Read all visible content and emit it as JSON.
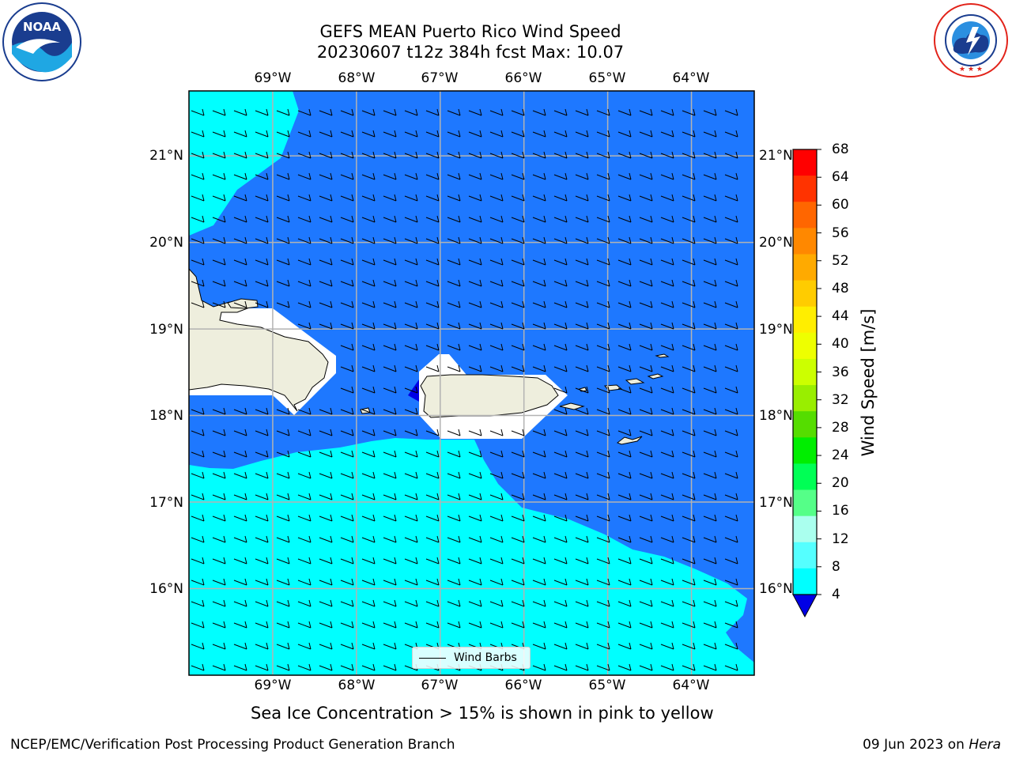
{
  "header": {
    "title_line1": "GEFS MEAN Puerto Rico Wind Speed",
    "title_line2": "20230607 t12z 384h fcst   Max: 10.07"
  },
  "logos": {
    "left": {
      "name": "NOAA",
      "ring_text": "NATIONAL OCEANIC AND ATMOSPHERIC ADMINISTRATION",
      "bottom_text": "U.S. DEPARTMENT OF COMMERCE"
    },
    "right": {
      "ring_text": "NATIONAL WEATHER SERVICE"
    }
  },
  "map": {
    "lon_ticks": [
      "69°W",
      "68°W",
      "67°W",
      "66°W",
      "65°W",
      "64°W"
    ],
    "lat_ticks": [
      "21°N",
      "20°N",
      "19°N",
      "18°N",
      "17°N",
      "16°N"
    ],
    "extent": {
      "lon_min": -70.0,
      "lon_max": -63.25,
      "lat_min": 15.0,
      "lat_max": 21.75
    },
    "legend_label": "Wind Barbs",
    "land_color": "#eeeedd",
    "regions": [
      {
        "label": "4–8 m/s",
        "color": "#1e78ff"
      },
      {
        "label": "8–12 m/s",
        "color": "#00ffff"
      },
      {
        "label": "< 4 m/s",
        "color": "#0000e6"
      }
    ]
  },
  "colorbar": {
    "label": "Wind Speed [m/s]",
    "levels": [
      "68",
      "64",
      "60",
      "56",
      "52",
      "48",
      "44",
      "40",
      "36",
      "32",
      "28",
      "24",
      "20",
      "16",
      "12",
      "8",
      "4"
    ],
    "colors": [
      "#ff0000",
      "#ff3300",
      "#ff6600",
      "#ff8800",
      "#ffaa00",
      "#ffcc00",
      "#ffee00",
      "#eeff00",
      "#ccff00",
      "#99ee00",
      "#55dd00",
      "#00ee00",
      "#00ff55",
      "#55ff88",
      "#aaffee",
      "#55ffff",
      "#00ffff",
      "#1e78ff"
    ],
    "under_color": "#0000e6"
  },
  "caption": "Sea Ice Concentration > 15% is shown in pink to yellow",
  "footer": {
    "left": "NCEP/EMC/Verification Post Processing Product Generation Branch",
    "date": "09 Jun 2023 on ",
    "machine": "Hera"
  }
}
